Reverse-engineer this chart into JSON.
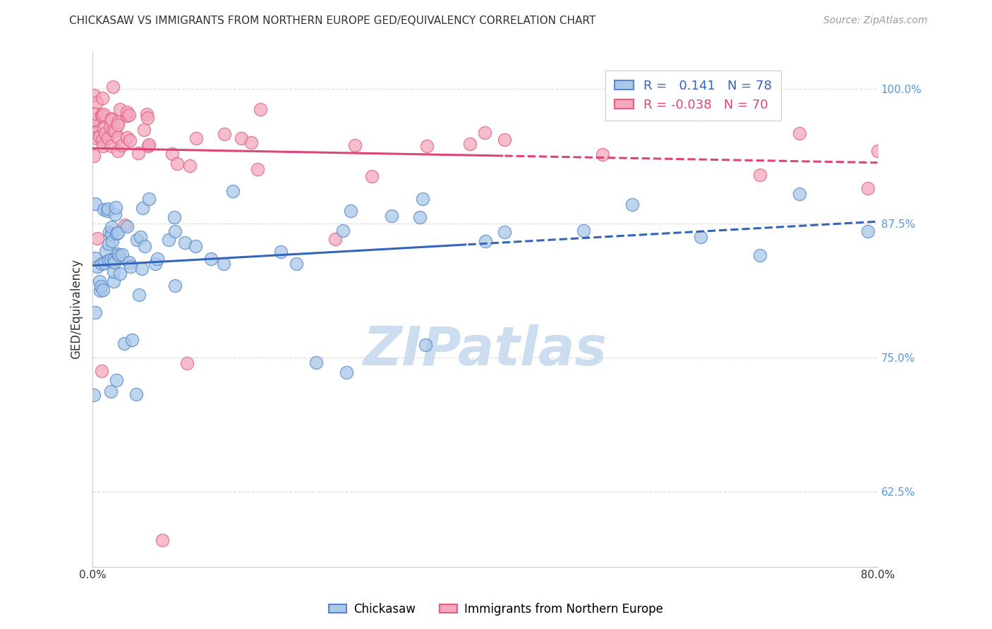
{
  "title": "CHICKASAW VS IMMIGRANTS FROM NORTHERN EUROPE GED/EQUIVALENCY CORRELATION CHART",
  "source": "Source: ZipAtlas.com",
  "ylabel": "GED/Equivalency",
  "xlim": [
    0.0,
    0.8
  ],
  "ylim": [
    0.555,
    1.035
  ],
  "ytick_positions": [
    0.625,
    0.75,
    0.875,
    1.0
  ],
  "ytick_labels": [
    "62.5%",
    "75.0%",
    "87.5%",
    "100.0%"
  ],
  "blue_R": 0.141,
  "blue_N": 78,
  "pink_R": -0.038,
  "pink_N": 70,
  "blue_color": "#aac8e8",
  "pink_color": "#f4a8bc",
  "blue_edge_color": "#5588cc",
  "pink_edge_color": "#e06080",
  "blue_line_color": "#3366bb",
  "pink_line_color": "#dd4477",
  "legend_label_blue": "Chickasaw",
  "legend_label_pink": "Immigrants from Northern Europe",
  "background_color": "#ffffff",
  "grid_color": "#dddddd",
  "watermark_color": "#ccddef",
  "watermark_fontsize": 55,
  "ytick_color": "#5599dd"
}
